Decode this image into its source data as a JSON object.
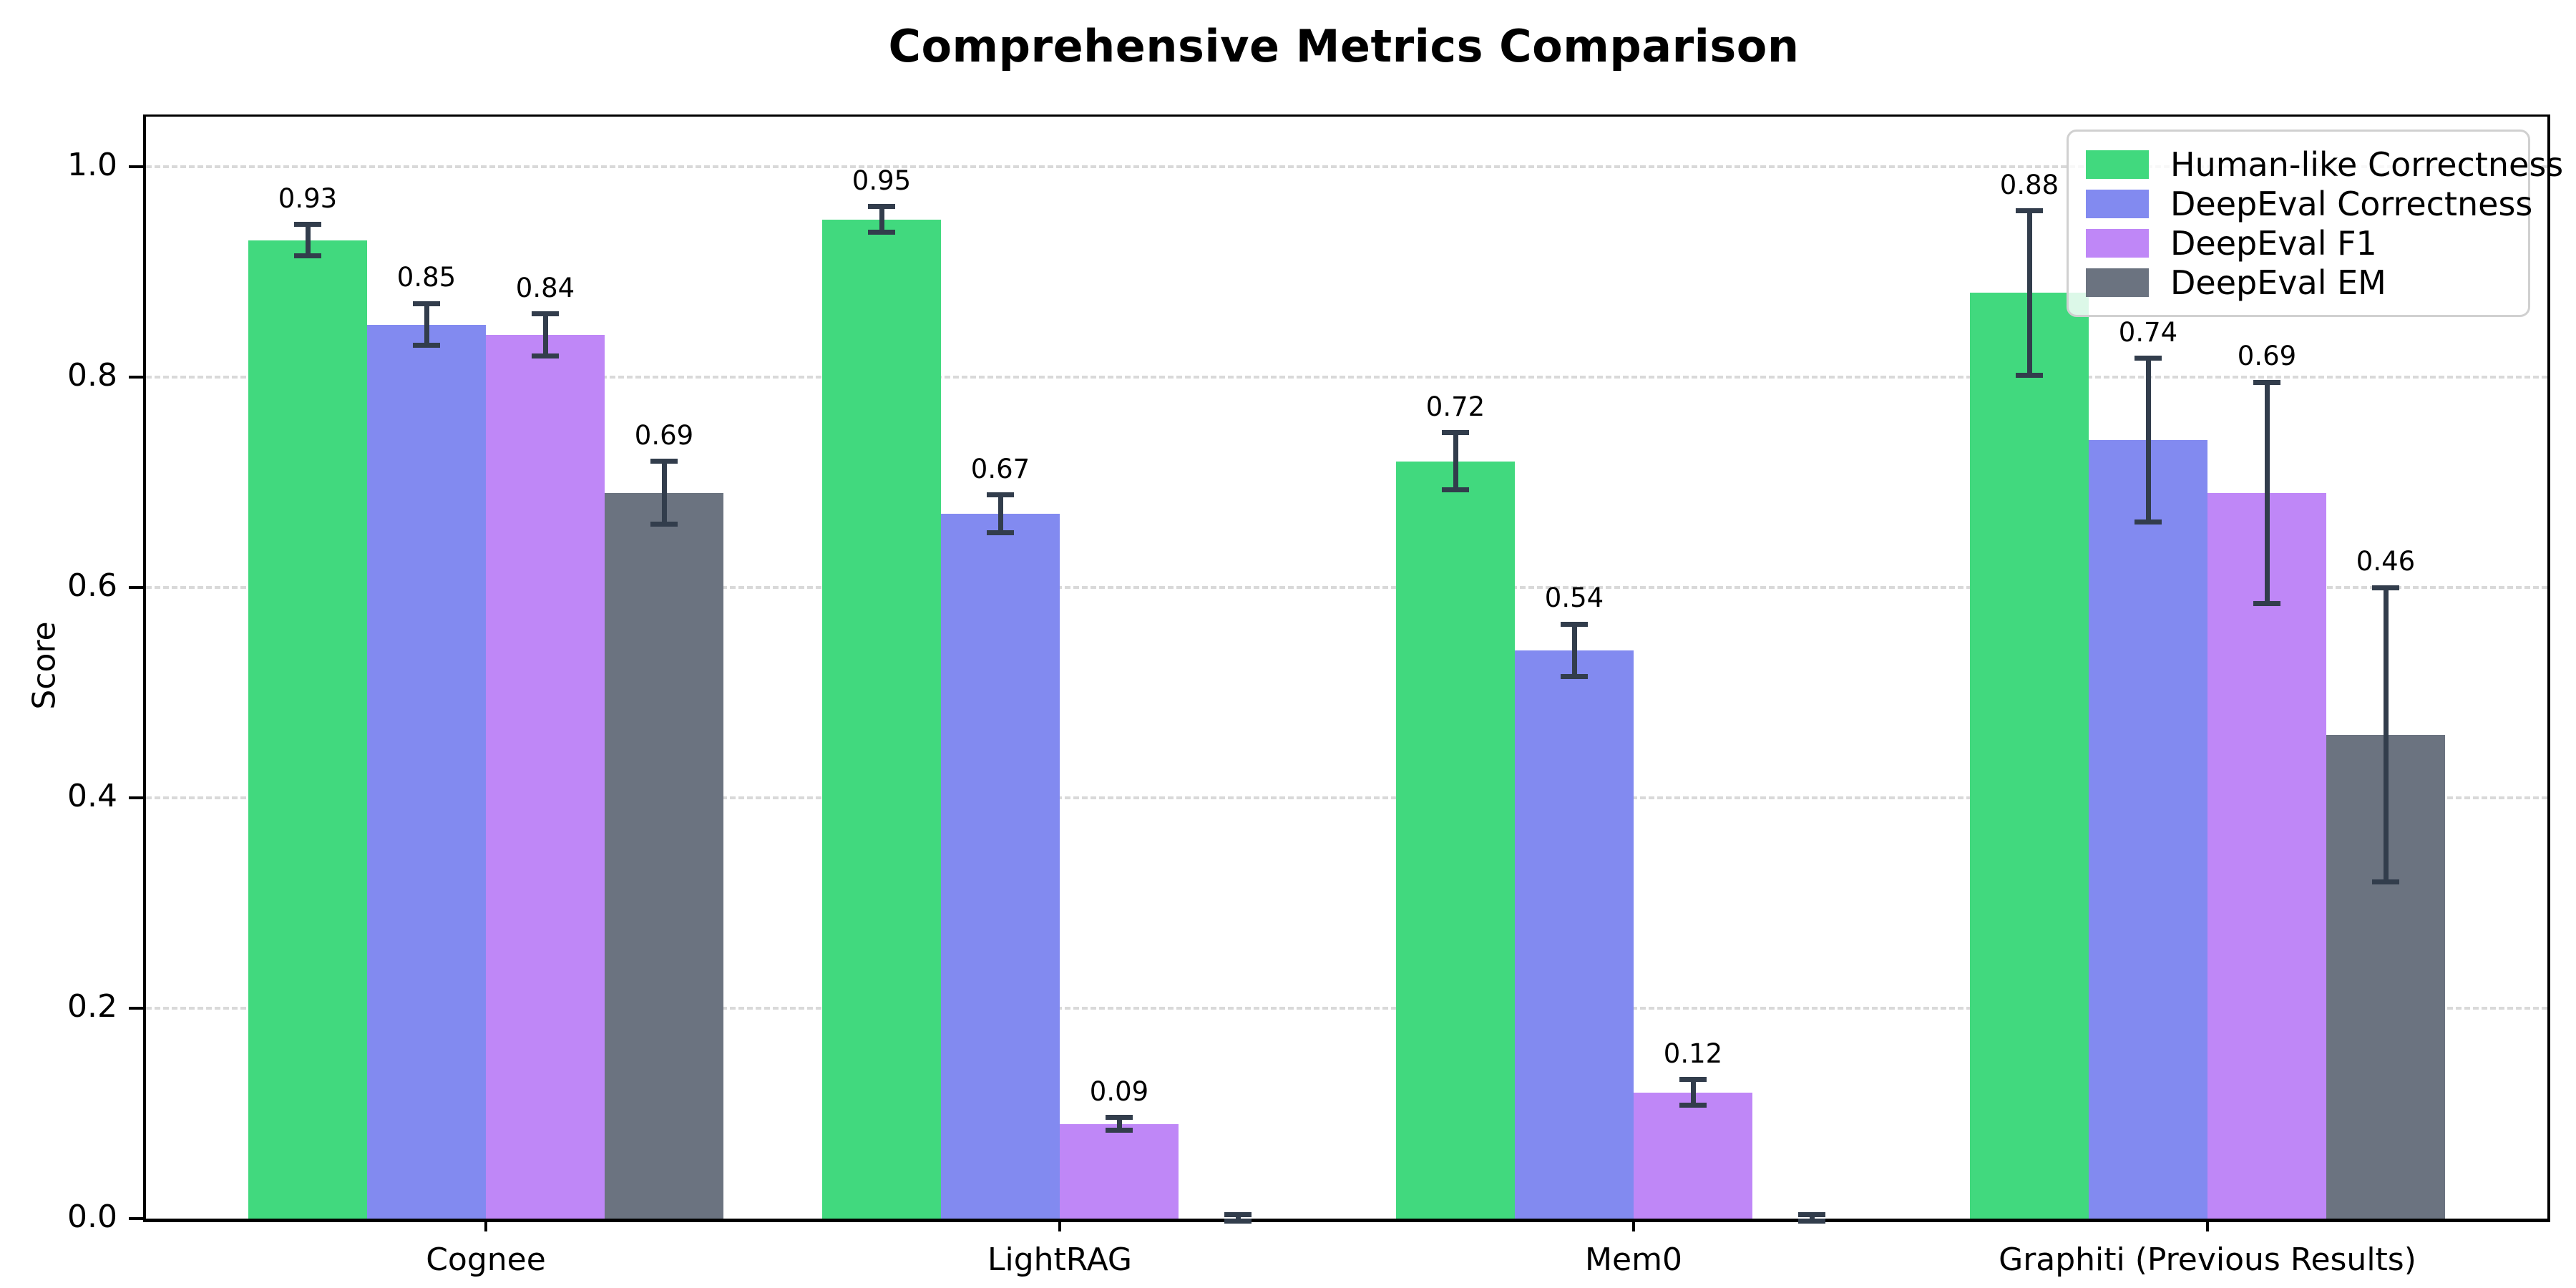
{
  "chart_data": {
    "type": "bar",
    "title": "Comprehensive Metrics Comparison",
    "ylabel": "Score",
    "xlabel": "",
    "categories": [
      "Cognee",
      "LightRAG",
      "Mem0",
      "Graphiti (Previous Results)"
    ],
    "ytick_labels": [
      "0.0",
      "0.2",
      "0.4",
      "0.6",
      "0.8",
      "1.0"
    ],
    "ytick_values": [
      0.0,
      0.2,
      0.4,
      0.6,
      0.8,
      1.0
    ],
    "ylim": [
      0.0,
      1.05
    ],
    "grid": "horizontal-dashed",
    "legend_position": "upper-right",
    "series": [
      {
        "name": "Human-like Correctness",
        "color": "#41d97e",
        "values": [
          0.93,
          0.95,
          0.72,
          0.88
        ],
        "errors": [
          0.015,
          0.012,
          0.027,
          0.078
        ],
        "labels": [
          "0.93",
          "0.95",
          "0.72",
          "0.88"
        ]
      },
      {
        "name": "DeepEval Correctness",
        "color": "#828af0",
        "values": [
          0.85,
          0.67,
          0.54,
          0.74
        ],
        "errors": [
          0.02,
          0.018,
          0.025,
          0.078
        ],
        "labels": [
          "0.85",
          "0.67",
          "0.54",
          "0.74"
        ]
      },
      {
        "name": "DeepEval F1",
        "color": "#bf87f7",
        "values": [
          0.84,
          0.09,
          0.12,
          0.69
        ],
        "errors": [
          0.02,
          0.006,
          0.012,
          0.105
        ],
        "labels": [
          "0.84",
          "0.09",
          "0.12",
          "0.69"
        ]
      },
      {
        "name": "DeepEval EM",
        "color": "#6b7380",
        "values": [
          0.69,
          0.0,
          0.0,
          0.46
        ],
        "errors": [
          0.03,
          0.004,
          0.004,
          0.14
        ],
        "labels": [
          "0.69",
          null,
          null,
          "0.46"
        ]
      }
    ],
    "error_bar_color": "#323d4c",
    "grid_color": "#d9d9d9",
    "axis_color": "#000000",
    "background_color": "#ffffff"
  }
}
